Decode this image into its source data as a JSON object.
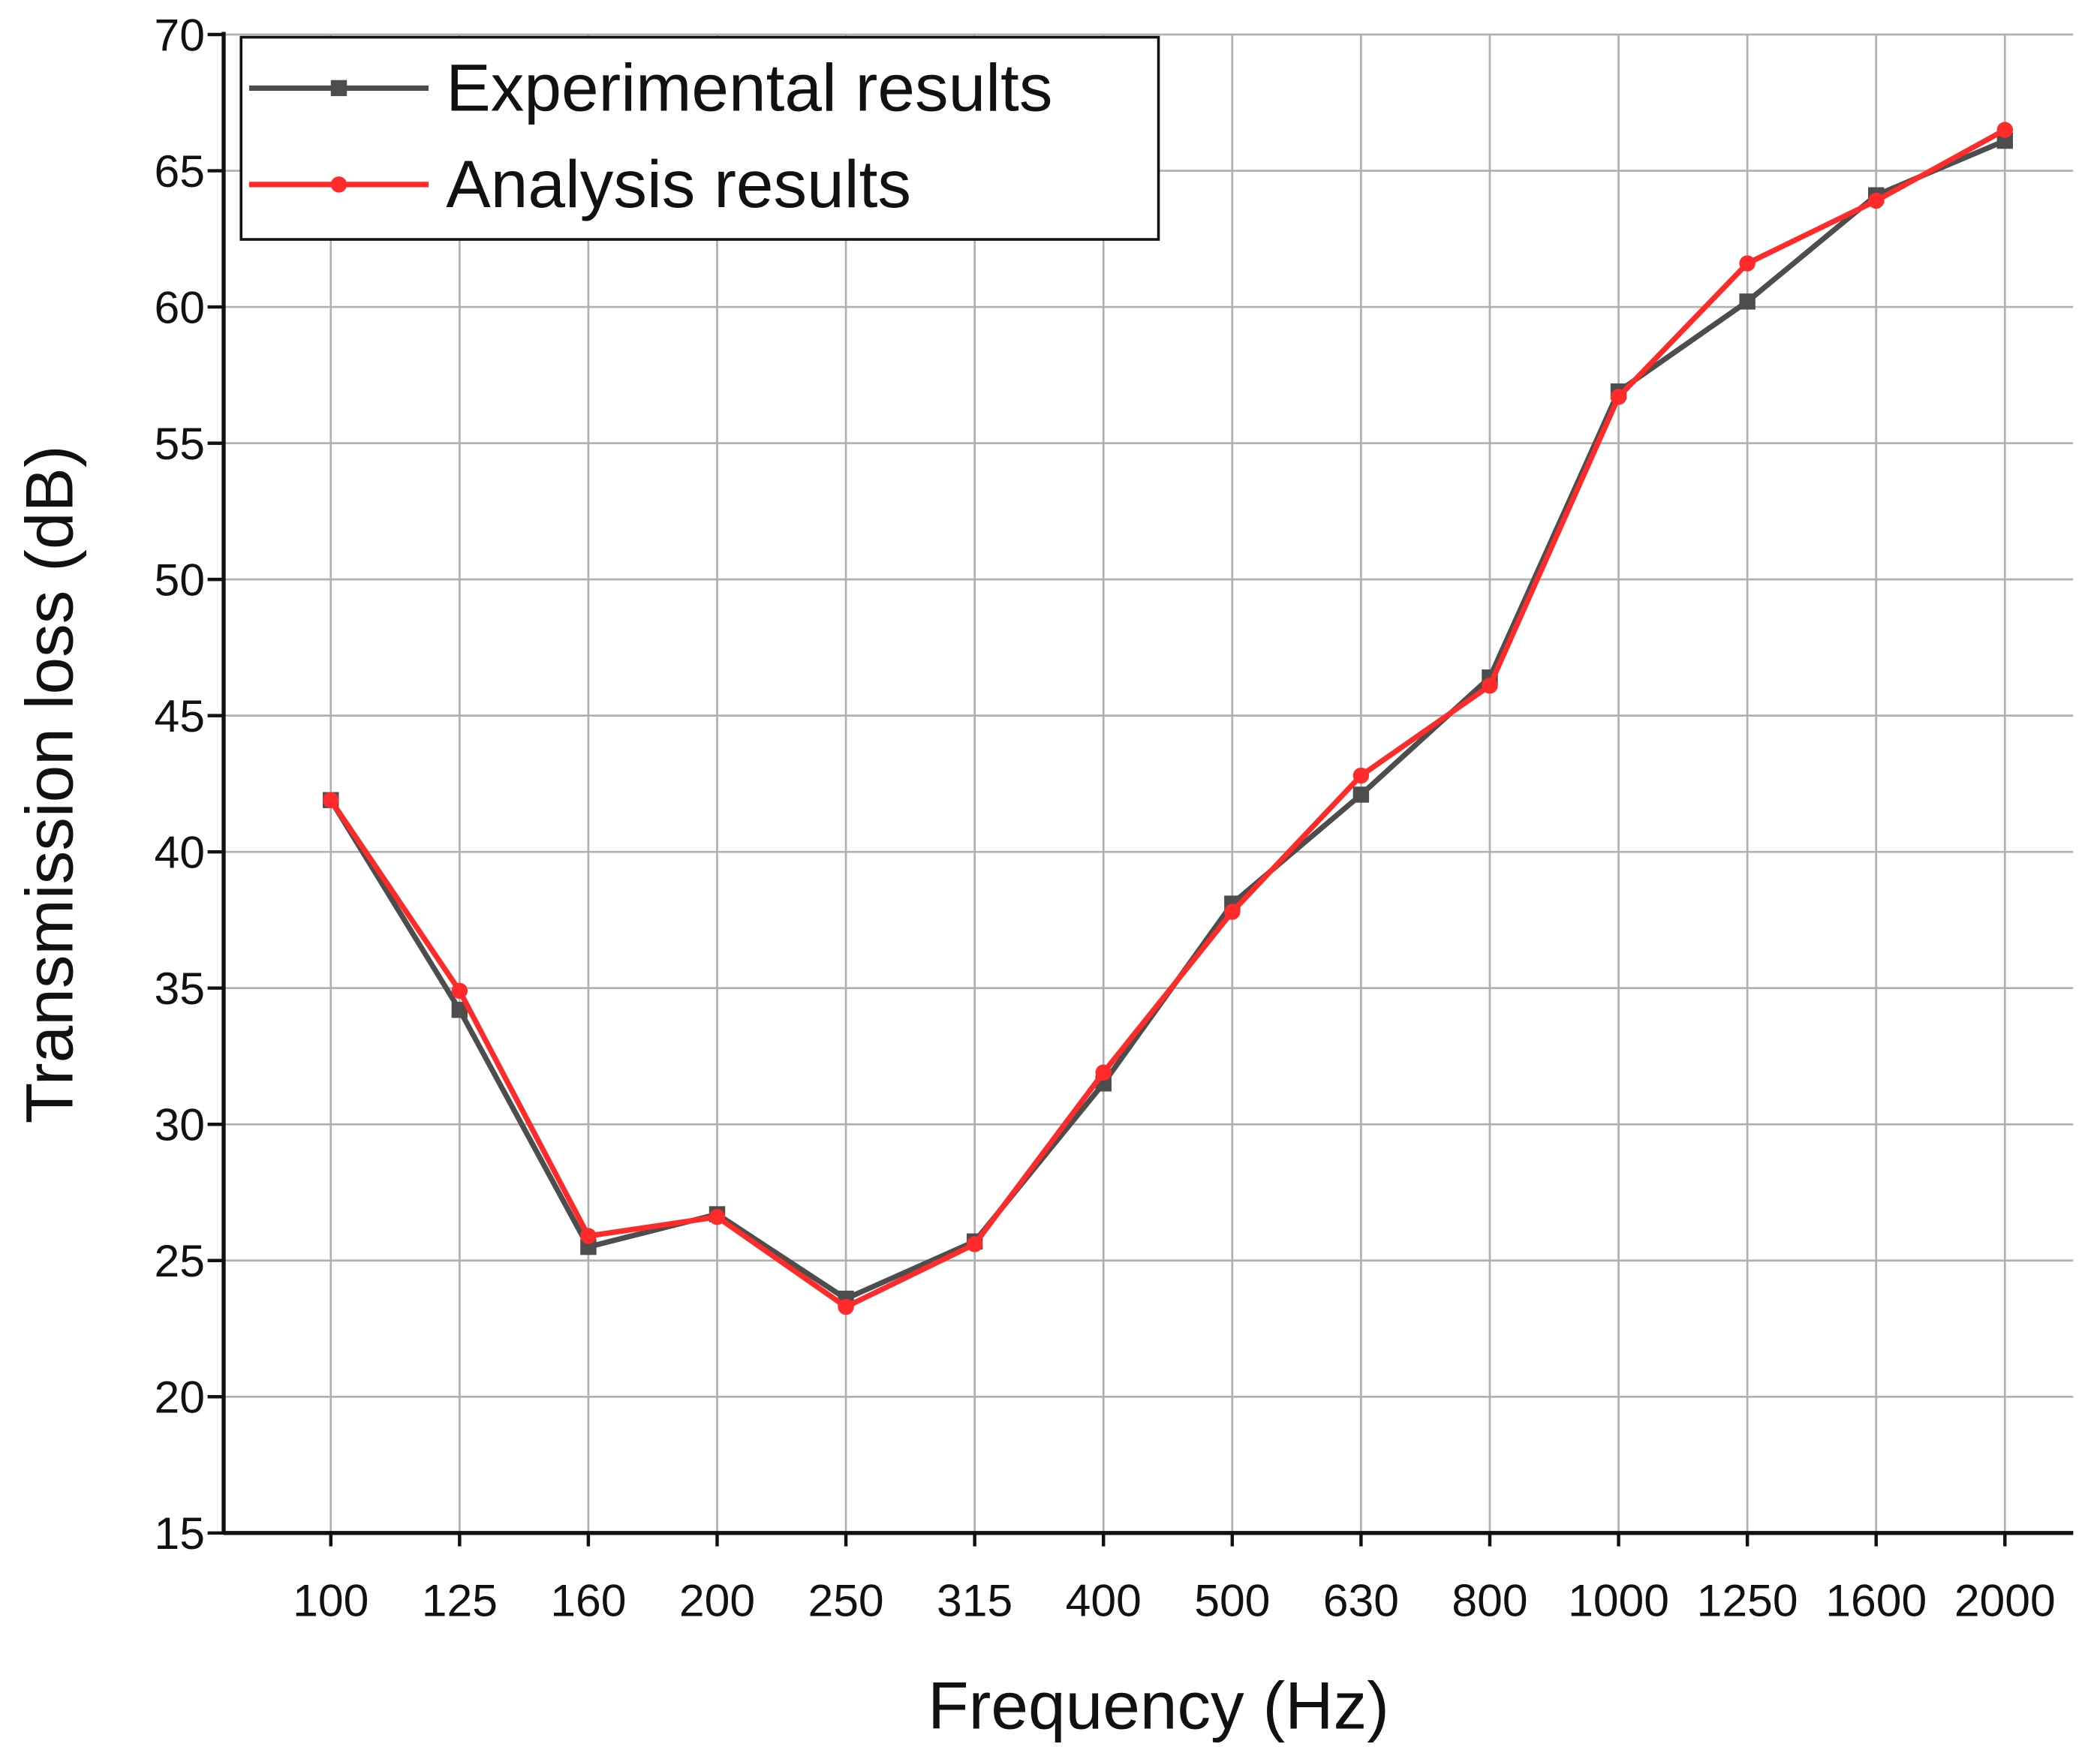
{
  "chart_data": {
    "type": "line",
    "x_label": "Frequency (Hz)",
    "y_label": "Transmission loss (dB)",
    "categories": [
      "100",
      "125",
      "160",
      "200",
      "250",
      "315",
      "400",
      "500",
      "630",
      "800",
      "1000",
      "1250",
      "1600",
      "2000"
    ],
    "series": [
      {
        "name": "Experimental results",
        "color": "#4d4d4d",
        "marker": "square",
        "values": [
          41.9,
          34.2,
          25.5,
          26.7,
          23.6,
          25.7,
          31.5,
          38.1,
          42.1,
          46.4,
          56.9,
          60.2,
          64.1,
          66.1
        ]
      },
      {
        "name": "Analysis results",
        "color": "#ff2a2a",
        "marker": "circle",
        "values": [
          41.9,
          34.9,
          25.9,
          26.6,
          23.3,
          25.6,
          31.9,
          37.8,
          42.8,
          46.1,
          56.7,
          61.6,
          63.9,
          66.5
        ]
      }
    ],
    "ylim": [
      15,
      70
    ],
    "yticks": [
      15,
      20,
      25,
      30,
      35,
      40,
      45,
      50,
      55,
      60,
      65,
      70
    ],
    "grid": true,
    "legend": "top-left"
  }
}
